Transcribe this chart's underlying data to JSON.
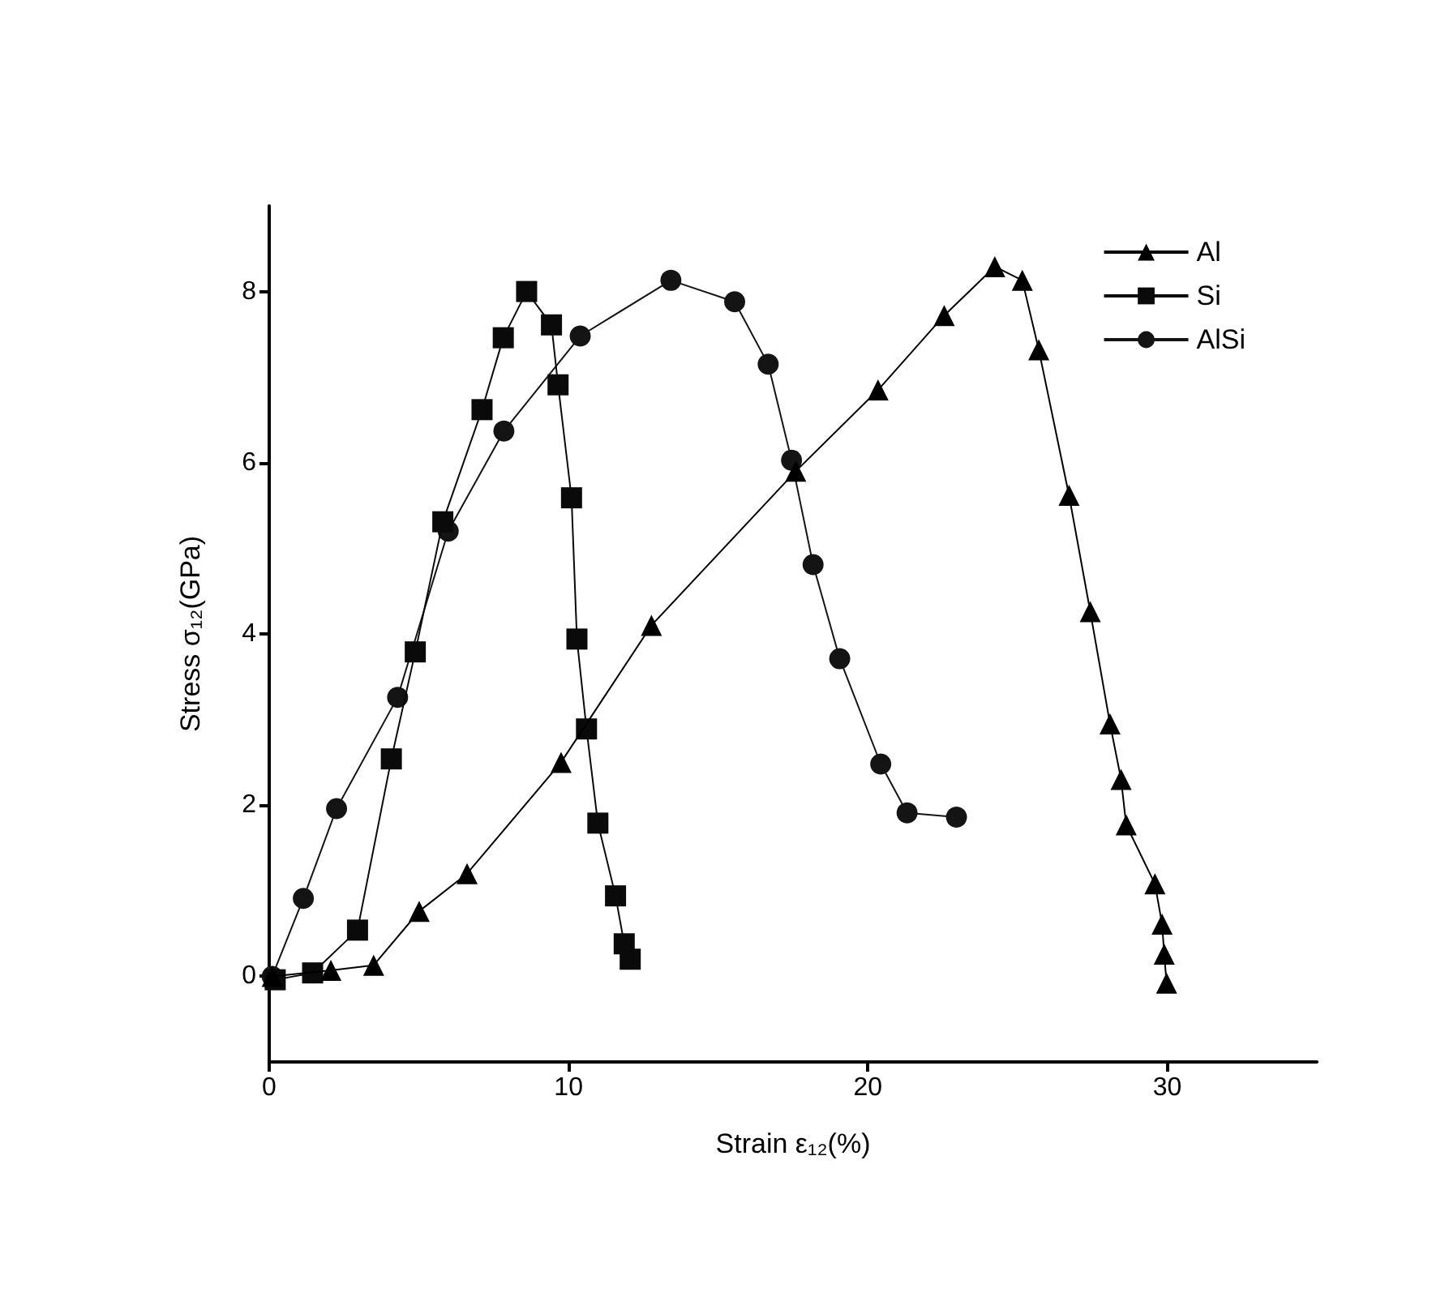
{
  "chart_data": {
    "type": "line",
    "xlabel": "Strain ε₁₂(%)",
    "ylabel": "Stress σ₁₂(GPa)",
    "xlim": [
      0,
      35
    ],
    "xticks": [
      0,
      10,
      20,
      30
    ],
    "ylim": [
      -1,
      9
    ],
    "yticks": [
      0,
      2,
      4,
      6,
      8
    ],
    "grid": false,
    "legend": "top right",
    "line_style": "solid",
    "series": [
      {
        "name": "Al",
        "color": "#000000",
        "marker": "triangle",
        "x": [
          0.1,
          2.06,
          3.49,
          5.01,
          6.61,
          9.75,
          12.77,
          17.59,
          20.34,
          22.55,
          24.24,
          25.16,
          25.71,
          26.72,
          27.43,
          28.09,
          28.46,
          28.63,
          29.59,
          29.83,
          29.9,
          29.98
        ],
        "values": [
          0,
          0.07,
          0.13,
          0.76,
          1.2,
          2.5,
          4.1,
          5.9,
          6.85,
          7.72,
          8.29,
          8.13,
          7.32,
          5.62,
          4.26,
          2.95,
          2.3,
          1.77,
          1.08,
          0.61,
          0.26,
          -0.08
        ]
      },
      {
        "name": "Si",
        "color": "#0a0a0a",
        "marker": "square",
        "x": [
          0.2,
          1.45,
          2.95,
          4.08,
          4.88,
          5.8,
          7.11,
          7.82,
          8.6,
          9.43,
          9.65,
          10.1,
          10.28,
          10.6,
          10.98,
          11.57,
          11.86,
          12.06
        ],
        "values": [
          -0.04,
          0.04,
          0.54,
          2.54,
          3.79,
          5.31,
          6.62,
          7.46,
          8.0,
          7.61,
          6.91,
          5.59,
          3.94,
          2.89,
          1.79,
          0.94,
          0.38,
          0.2
        ]
      },
      {
        "name": "AlSi",
        "color": "#141414",
        "marker": "circle",
        "x": [
          0.1,
          1.14,
          2.25,
          4.29,
          5.98,
          7.84,
          10.39,
          13.42,
          15.55,
          16.67,
          17.45,
          18.17,
          19.06,
          20.43,
          21.31,
          22.96
        ],
        "values": [
          0,
          0.91,
          1.96,
          3.26,
          5.2,
          6.37,
          7.48,
          8.13,
          7.88,
          7.15,
          6.03,
          4.81,
          3.71,
          2.48,
          1.91,
          1.86
        ]
      }
    ]
  }
}
